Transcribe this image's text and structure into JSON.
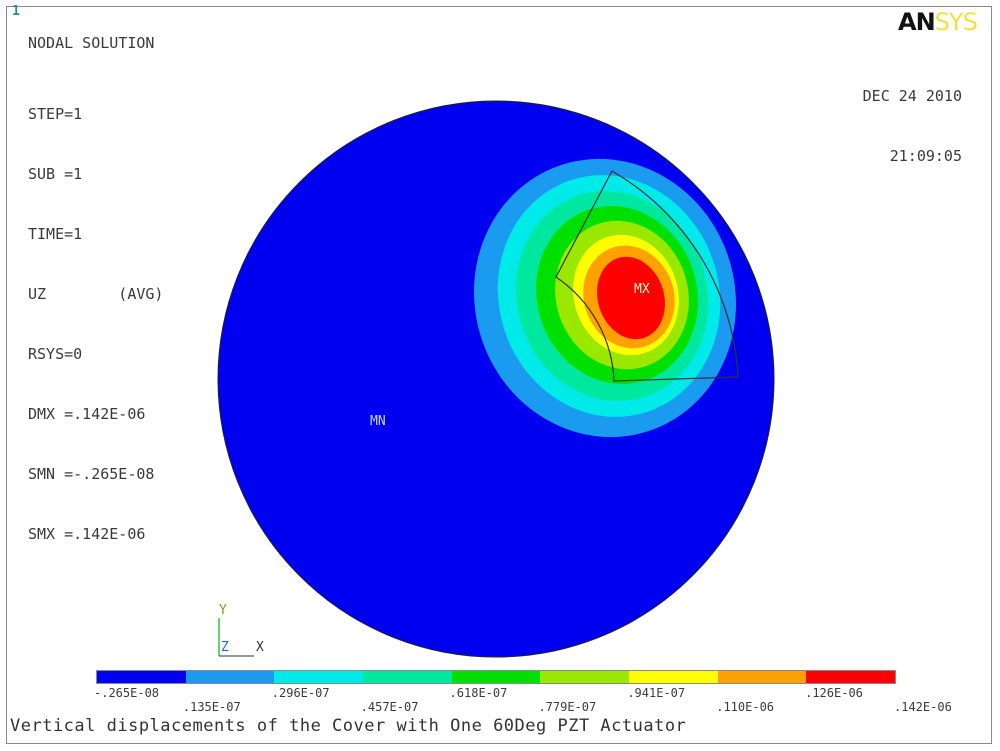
{
  "window": {
    "number": "1"
  },
  "logo": {
    "part1": "AN",
    "part2": "SYS"
  },
  "plot": {
    "title": "NODAL SOLUTION",
    "info_lines": [
      "STEP=1",
      "SUB =1",
      "TIME=1",
      "UZ        (AVG)",
      "RSYS=0",
      "DMX =.142E-06",
      "SMN =-.265E-08",
      "SMX =.142E-06"
    ],
    "date": "DEC 24 2010",
    "time": "21:09:05",
    "max_marker": "MX",
    "min_marker": "MN",
    "caption": "Vertical displacements of the Cover with One 60Deg PZT Actuator"
  },
  "triad": {
    "y": "Y",
    "z": "Z",
    "x": "X"
  },
  "legend": {
    "colors": [
      "#0000f0",
      "#1a9bf0",
      "#00eaea",
      "#00e8a0",
      "#00e000",
      "#9ae800",
      "#ffff00",
      "#ffa200",
      "#ff0000"
    ],
    "labels_lower": [
      "-.265E-08",
      ".296E-07",
      ".618E-07",
      ".941E-07",
      ".126E-06"
    ],
    "labels_upper": [
      ".135E-07",
      ".457E-07",
      ".779E-07",
      ".110E-06",
      ".142E-06"
    ]
  },
  "chart_data": {
    "type": "heatmap",
    "title": "NODAL SOLUTION",
    "quantity": "UZ",
    "min": -2.65e-09,
    "max": 1.42e-07,
    "contour_levels": [
      -2.65e-09,
      1.35e-08,
      2.96e-08,
      4.57e-08,
      6.18e-08,
      7.79e-08,
      9.41e-08,
      1.1e-07,
      1.26e-07,
      1.42e-07
    ]
  }
}
